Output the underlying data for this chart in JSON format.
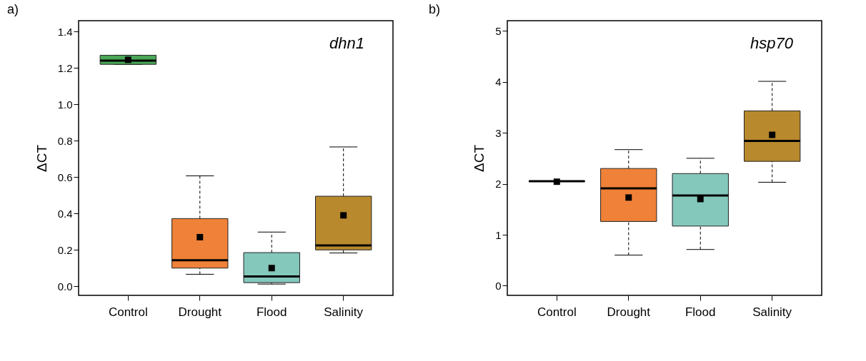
{
  "chart_data": [
    {
      "type": "box",
      "title": "a)",
      "ylabel": "ΔCT",
      "categories": [
        "Control",
        "Drought",
        "Flood",
        "Salinity"
      ],
      "colors": [
        "#4aa757",
        "#ef8138",
        "#84c8bb",
        "#b8892d"
      ],
      "ylim": [
        -0.05,
        1.46
      ],
      "yticks": [
        {
          "value": 0,
          "label": "0.0"
        },
        0.2,
        0.4,
        0.6,
        0.8,
        {
          "value": 1,
          "label": "1.0"
        },
        1.2,
        1.4
      ],
      "annotations": [
        "dhn1"
      ],
      "boxes": [
        {
          "low": 1.22,
          "q1": 1.22,
          "median": 1.24,
          "q3": 1.27,
          "high": 1.27,
          "mean": 1.245
        },
        {
          "low": 0.066,
          "q1": 0.1,
          "median": 0.143,
          "q3": 0.372,
          "high": 0.607,
          "mean": 0.27
        },
        {
          "low": 0.012,
          "q1": 0.02,
          "median": 0.054,
          "q3": 0.185,
          "high": 0.298,
          "mean": 0.1
        },
        {
          "low": 0.183,
          "q1": 0.2,
          "median": 0.225,
          "q3": 0.495,
          "high": 0.766,
          "mean": 0.39
        }
      ]
    },
    {
      "type": "box",
      "title": "b)",
      "ylabel": "ΔCT",
      "categories": [
        "Control",
        "Drought",
        "Flood",
        "Salinity"
      ],
      "colors": [
        "#222222",
        "#ef8138",
        "#84c8bb",
        "#b8892d"
      ],
      "ylim": [
        -0.19,
        5.2
      ],
      "yticks": [
        0,
        1,
        2,
        3,
        4,
        5
      ],
      "annotations": [
        "hsp70"
      ],
      "boxes": [
        {
          "low": 2.05,
          "q1": 2.05,
          "median": 2.05,
          "q3": 2.05,
          "high": 2.05,
          "mean": 2.04
        },
        {
          "low": 0.6,
          "q1": 1.26,
          "median": 1.91,
          "q3": 2.3,
          "high": 2.67,
          "mean": 1.73
        },
        {
          "low": 0.71,
          "q1": 1.17,
          "median": 1.77,
          "q3": 2.2,
          "high": 2.5,
          "mean": 1.7
        },
        {
          "low": 2.03,
          "q1": 2.44,
          "median": 2.84,
          "q3": 3.43,
          "high": 4.01,
          "mean": 2.96
        }
      ]
    }
  ]
}
